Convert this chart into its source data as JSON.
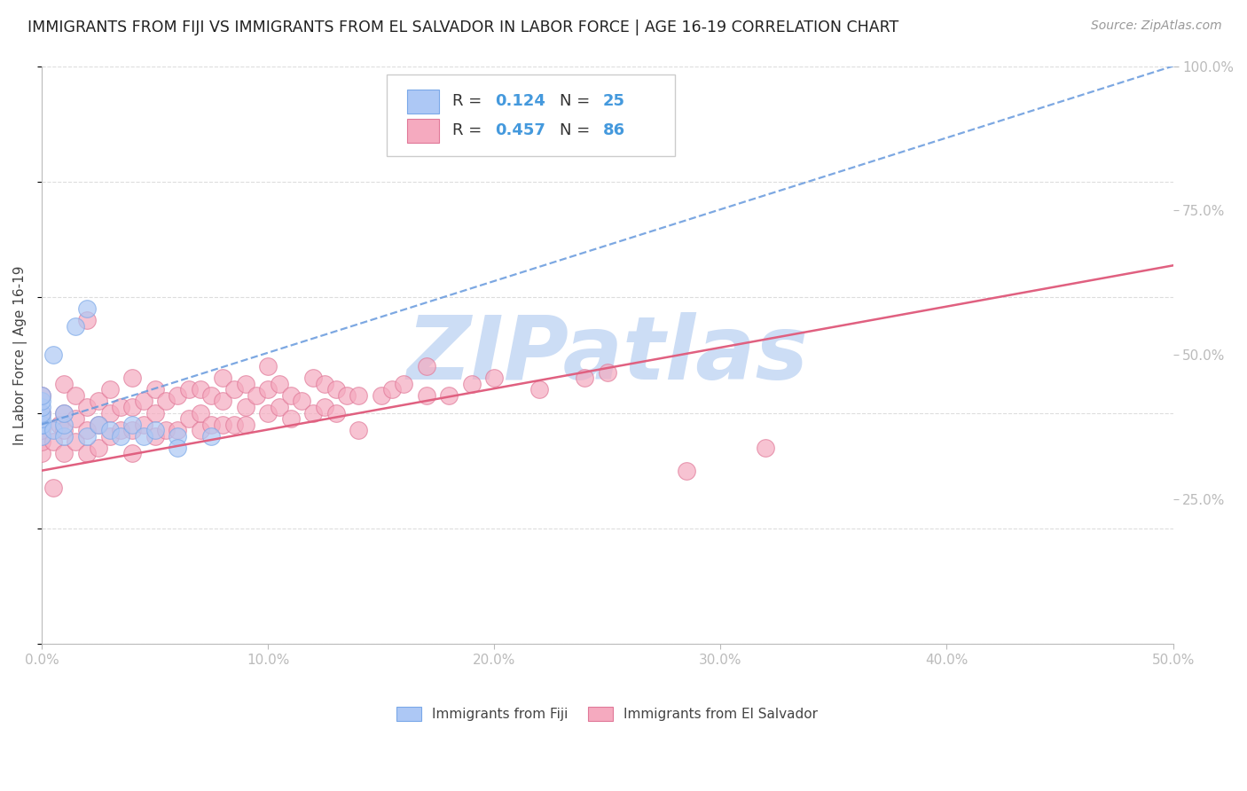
{
  "title": "IMMIGRANTS FROM FIJI VS IMMIGRANTS FROM EL SALVADOR IN LABOR FORCE | AGE 16-19 CORRELATION CHART",
  "source": "Source: ZipAtlas.com",
  "ylabel": "In Labor Force | Age 16-19",
  "xlim": [
    0.0,
    0.5
  ],
  "ylim": [
    0.0,
    1.0
  ],
  "xtick_labels": [
    "0.0%",
    "10.0%",
    "20.0%",
    "30.0%",
    "40.0%",
    "50.0%"
  ],
  "xtick_vals": [
    0.0,
    0.1,
    0.2,
    0.3,
    0.4,
    0.5
  ],
  "ytick_labels_right": [
    "25.0%",
    "50.0%",
    "75.0%",
    "100.0%"
  ],
  "ytick_vals": [
    0.25,
    0.5,
    0.75,
    1.0
  ],
  "fiji_color": "#adc8f5",
  "fiji_edge_color": "#7aa8e8",
  "salvador_color": "#f5aabf",
  "salvador_edge_color": "#e07898",
  "fiji_R": 0.124,
  "fiji_N": 25,
  "salvador_R": 0.457,
  "salvador_N": 86,
  "fiji_scatter_x": [
    0.0,
    0.0,
    0.0,
    0.0,
    0.0,
    0.0,
    0.0,
    0.0,
    0.005,
    0.005,
    0.01,
    0.01,
    0.01,
    0.015,
    0.02,
    0.02,
    0.025,
    0.03,
    0.035,
    0.04,
    0.045,
    0.05,
    0.06,
    0.06,
    0.075
  ],
  "fiji_scatter_y": [
    0.36,
    0.38,
    0.38,
    0.39,
    0.4,
    0.41,
    0.42,
    0.43,
    0.37,
    0.5,
    0.36,
    0.38,
    0.4,
    0.55,
    0.36,
    0.58,
    0.38,
    0.37,
    0.36,
    0.38,
    0.36,
    0.37,
    0.36,
    0.34,
    0.36
  ],
  "salvador_scatter_x": [
    0.0,
    0.0,
    0.0,
    0.0,
    0.0,
    0.005,
    0.005,
    0.008,
    0.01,
    0.01,
    0.01,
    0.01,
    0.015,
    0.015,
    0.015,
    0.02,
    0.02,
    0.02,
    0.02,
    0.025,
    0.025,
    0.025,
    0.03,
    0.03,
    0.03,
    0.035,
    0.035,
    0.04,
    0.04,
    0.04,
    0.04,
    0.045,
    0.045,
    0.05,
    0.05,
    0.05,
    0.055,
    0.055,
    0.06,
    0.06,
    0.065,
    0.065,
    0.07,
    0.07,
    0.07,
    0.075,
    0.075,
    0.08,
    0.08,
    0.08,
    0.085,
    0.085,
    0.09,
    0.09,
    0.09,
    0.095,
    0.1,
    0.1,
    0.1,
    0.105,
    0.105,
    0.11,
    0.11,
    0.115,
    0.12,
    0.12,
    0.125,
    0.125,
    0.13,
    0.13,
    0.135,
    0.14,
    0.14,
    0.15,
    0.155,
    0.16,
    0.17,
    0.17,
    0.18,
    0.19,
    0.2,
    0.22,
    0.24,
    0.25,
    0.285,
    0.32
  ],
  "salvador_scatter_y": [
    0.33,
    0.35,
    0.37,
    0.4,
    0.43,
    0.27,
    0.35,
    0.38,
    0.33,
    0.37,
    0.4,
    0.45,
    0.35,
    0.39,
    0.43,
    0.33,
    0.37,
    0.41,
    0.56,
    0.34,
    0.38,
    0.42,
    0.36,
    0.4,
    0.44,
    0.37,
    0.41,
    0.33,
    0.37,
    0.41,
    0.46,
    0.38,
    0.42,
    0.36,
    0.4,
    0.44,
    0.37,
    0.42,
    0.37,
    0.43,
    0.39,
    0.44,
    0.37,
    0.4,
    0.44,
    0.38,
    0.43,
    0.38,
    0.42,
    0.46,
    0.38,
    0.44,
    0.38,
    0.41,
    0.45,
    0.43,
    0.4,
    0.44,
    0.48,
    0.41,
    0.45,
    0.39,
    0.43,
    0.42,
    0.4,
    0.46,
    0.41,
    0.45,
    0.4,
    0.44,
    0.43,
    0.37,
    0.43,
    0.43,
    0.44,
    0.45,
    0.43,
    0.48,
    0.43,
    0.45,
    0.46,
    0.44,
    0.46,
    0.47,
    0.3,
    0.34
  ],
  "watermark_text": "ZIPatlas",
  "watermark_color": "#ccddf5",
  "grid_color": "#dddddd",
  "axis_color": "#bbbbbb",
  "tick_color": "#4499dd",
  "fiji_line_color": "#6699dd",
  "salvador_line_color": "#e06080",
  "fiji_trendline_x0": 0.0,
  "fiji_trendline_y0": 0.38,
  "fiji_trendline_x1": 0.5,
  "fiji_trendline_y1": 1.0,
  "salvador_trendline_x0": 0.0,
  "salvador_trendline_y0": 0.3,
  "salvador_trendline_x1": 0.5,
  "salvador_trendline_y1": 0.655,
  "background_color": "#ffffff",
  "title_fontsize": 12.5,
  "source_fontsize": 10,
  "tick_fontsize": 11,
  "ylabel_fontsize": 11,
  "legend_fontsize": 13
}
